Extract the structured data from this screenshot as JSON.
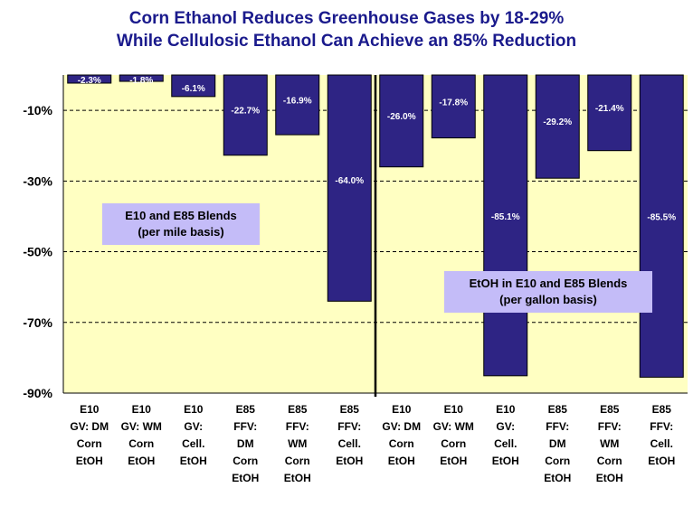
{
  "chart_data": {
    "type": "bar",
    "title_lines": [
      "Corn Ethanol Reduces Greenhouse Gases by 18-29%",
      "While Cellulosic Ethanol Can Achieve an 85% Reduction"
    ],
    "xlabel": "",
    "ylabel": "",
    "ylim": [
      -90,
      0
    ],
    "yticks": [
      -10,
      -30,
      -50,
      -70,
      -90
    ],
    "ytick_labels": [
      "-10%",
      "-30%",
      "-50%",
      "-70%",
      "-90%"
    ],
    "grid": true,
    "categories": [
      [
        "E10",
        "GV: DM",
        "Corn",
        "EtOH"
      ],
      [
        "E10",
        "GV: WM",
        "Corn",
        "EtOH"
      ],
      [
        "E10",
        "GV:",
        "Cell.",
        "EtOH"
      ],
      [
        "E85",
        "FFV:",
        "DM",
        "Corn",
        "EtOH"
      ],
      [
        "E85",
        "FFV:",
        "WM",
        "Corn",
        "EtOH"
      ],
      [
        "E85",
        "FFV:",
        "Cell.",
        "EtOH"
      ],
      [
        "E10",
        "GV: DM",
        "Corn",
        "EtOH"
      ],
      [
        "E10",
        "GV: WM",
        "Corn",
        "EtOH"
      ],
      [
        "E10",
        "GV:",
        "Cell.",
        "EtOH"
      ],
      [
        "E85",
        "FFV:",
        "DM",
        "Corn",
        "EtOH"
      ],
      [
        "E85",
        "FFV:",
        "WM",
        "Corn",
        "EtOH"
      ],
      [
        "E85",
        "FFV:",
        "Cell.",
        "EtOH"
      ]
    ],
    "values": [
      -2.3,
      -1.8,
      -6.1,
      -22.7,
      -16.9,
      -64.0,
      -26.0,
      -17.8,
      -85.1,
      -29.2,
      -21.4,
      -85.5
    ],
    "value_labels": [
      "-2.3%",
      "-1.8%",
      "-6.1%",
      "-22.7%",
      "-16.9%",
      "-64.0%",
      "-26.0%",
      "-17.8%",
      "-85.1%",
      "-29.2%",
      "-21.4%",
      "-85.5%"
    ],
    "divider_after_index": 5,
    "annotations": [
      {
        "lines": [
          "E10 and E85 Blends",
          "(per mile basis)"
        ],
        "group": "left"
      },
      {
        "lines": [
          "EtOH in E10 and E85 Blends",
          "(per gallon basis)"
        ],
        "group": "right"
      }
    ],
    "colors": {
      "bar": "#2e2484",
      "plot_bg": "#ffffc2",
      "title": "#1a1a8c",
      "annotation_bg": "#c4bcf8"
    }
  }
}
